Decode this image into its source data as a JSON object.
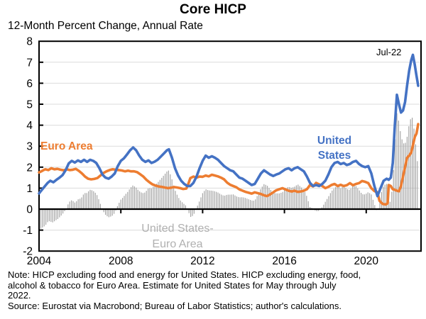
{
  "header": {
    "title": "Core HICP",
    "subtitle": "12-Month Percent Change, Annual Rate"
  },
  "annotations": {
    "euro_area": "Euro Area",
    "united_states_line1": "United",
    "united_states_line2": "States",
    "diff_line1": "United States-",
    "diff_line2": "Euro Area",
    "end_label": "Jul-22"
  },
  "notes": {
    "line1": "Note: HICP excluding food and energy for United States. HICP excluding energy, food,",
    "line2": "alcohol & tobacco for Euro Area. Estimate for United States for May through July",
    "line3": "2022.",
    "line4": "Source: Eurostat via Macrobond; Bureau of Labor Statistics; author's calculations."
  },
  "colors": {
    "united_states": "#4472C4",
    "euro_area": "#ED7D31",
    "difference_bars": "#A6A6A6",
    "diff_label_gray": "#B0B0B0",
    "gridline": "#DBDBDB"
  },
  "chart_data": {
    "type": "line",
    "title": "Core HICP",
    "subtitle": "12-Month Percent Change, Annual Rate",
    "y_axis": {
      "ticks": [
        8,
        7,
        6,
        5,
        4,
        3,
        2,
        1,
        0,
        -1,
        -2
      ],
      "range": [
        -2,
        8
      ],
      "grid": true
    },
    "x_axis": {
      "ticks": [
        2004,
        2008,
        2012,
        2016,
        2020
      ],
      "range": [
        2004,
        2022.67
      ],
      "data_end": 2022.54,
      "end_label": "Jul-22"
    },
    "bar_series": {
      "name": "United States-Euro Area",
      "definition": "united_states_minus_euro_area_monthly",
      "color": "#A6A6A6"
    },
    "series": [
      {
        "name": "United States",
        "color": "#4472C4",
        "points": [
          [
            2004.0,
            0.75
          ],
          [
            2004.08,
            0.85
          ],
          [
            2004.25,
            1.05
          ],
          [
            2004.42,
            1.25
          ],
          [
            2004.55,
            1.35
          ],
          [
            2004.7,
            1.28
          ],
          [
            2004.85,
            1.4
          ],
          [
            2005.0,
            1.5
          ],
          [
            2005.15,
            1.62
          ],
          [
            2005.3,
            1.85
          ],
          [
            2005.45,
            2.18
          ],
          [
            2005.6,
            2.3
          ],
          [
            2005.75,
            2.22
          ],
          [
            2005.9,
            2.32
          ],
          [
            2006.05,
            2.25
          ],
          [
            2006.2,
            2.35
          ],
          [
            2006.35,
            2.25
          ],
          [
            2006.5,
            2.35
          ],
          [
            2006.65,
            2.3
          ],
          [
            2006.8,
            2.2
          ],
          [
            2006.95,
            1.95
          ],
          [
            2007.1,
            1.65
          ],
          [
            2007.25,
            1.5
          ],
          [
            2007.4,
            1.45
          ],
          [
            2007.55,
            1.55
          ],
          [
            2007.7,
            1.7
          ],
          [
            2007.85,
            2.05
          ],
          [
            2008.0,
            2.3
          ],
          [
            2008.15,
            2.42
          ],
          [
            2008.3,
            2.6
          ],
          [
            2008.45,
            2.8
          ],
          [
            2008.6,
            2.94
          ],
          [
            2008.75,
            2.8
          ],
          [
            2008.9,
            2.55
          ],
          [
            2009.05,
            2.35
          ],
          [
            2009.2,
            2.25
          ],
          [
            2009.35,
            2.32
          ],
          [
            2009.5,
            2.2
          ],
          [
            2009.65,
            2.26
          ],
          [
            2009.8,
            2.35
          ],
          [
            2009.95,
            2.5
          ],
          [
            2010.1,
            2.65
          ],
          [
            2010.25,
            2.8
          ],
          [
            2010.35,
            2.85
          ],
          [
            2010.5,
            2.45
          ],
          [
            2010.65,
            1.95
          ],
          [
            2010.8,
            1.6
          ],
          [
            2010.95,
            1.35
          ],
          [
            2011.1,
            1.2
          ],
          [
            2011.25,
            1.1
          ],
          [
            2011.4,
            1.1
          ],
          [
            2011.55,
            1.25
          ],
          [
            2011.7,
            1.55
          ],
          [
            2011.85,
            1.95
          ],
          [
            2012.0,
            2.3
          ],
          [
            2012.15,
            2.55
          ],
          [
            2012.3,
            2.45
          ],
          [
            2012.45,
            2.52
          ],
          [
            2012.6,
            2.45
          ],
          [
            2012.75,
            2.35
          ],
          [
            2012.9,
            2.2
          ],
          [
            2013.05,
            2.05
          ],
          [
            2013.2,
            1.95
          ],
          [
            2013.35,
            1.85
          ],
          [
            2013.5,
            1.8
          ],
          [
            2013.65,
            1.65
          ],
          [
            2013.8,
            1.5
          ],
          [
            2013.95,
            1.45
          ],
          [
            2014.1,
            1.35
          ],
          [
            2014.25,
            1.25
          ],
          [
            2014.4,
            1.15
          ],
          [
            2014.55,
            1.2
          ],
          [
            2014.7,
            1.45
          ],
          [
            2014.85,
            1.7
          ],
          [
            2015.0,
            1.85
          ],
          [
            2015.15,
            1.75
          ],
          [
            2015.3,
            1.65
          ],
          [
            2015.45,
            1.58
          ],
          [
            2015.6,
            1.65
          ],
          [
            2015.75,
            1.7
          ],
          [
            2015.9,
            1.8
          ],
          [
            2016.05,
            1.9
          ],
          [
            2016.2,
            1.95
          ],
          [
            2016.35,
            1.85
          ],
          [
            2016.5,
            1.95
          ],
          [
            2016.65,
            2.0
          ],
          [
            2016.8,
            1.9
          ],
          [
            2016.95,
            1.8
          ],
          [
            2017.1,
            1.55
          ],
          [
            2017.25,
            1.25
          ],
          [
            2017.4,
            1.1
          ],
          [
            2017.55,
            1.15
          ],
          [
            2017.7,
            1.1
          ],
          [
            2017.85,
            1.2
          ],
          [
            2018.0,
            1.35
          ],
          [
            2018.15,
            1.65
          ],
          [
            2018.3,
            2.0
          ],
          [
            2018.45,
            2.2
          ],
          [
            2018.6,
            2.25
          ],
          [
            2018.75,
            2.15
          ],
          [
            2018.9,
            2.2
          ],
          [
            2019.05,
            2.1
          ],
          [
            2019.2,
            2.15
          ],
          [
            2019.35,
            2.25
          ],
          [
            2019.5,
            2.3
          ],
          [
            2019.65,
            2.15
          ],
          [
            2019.8,
            2.05
          ],
          [
            2019.95,
            2.0
          ],
          [
            2020.1,
            2.05
          ],
          [
            2020.25,
            1.7
          ],
          [
            2020.4,
            1.1
          ],
          [
            2020.55,
            0.62
          ],
          [
            2020.7,
            1.0
          ],
          [
            2020.85,
            1.35
          ],
          [
            2021.0,
            1.45
          ],
          [
            2021.1,
            1.4
          ],
          [
            2021.2,
            1.5
          ],
          [
            2021.3,
            2.2
          ],
          [
            2021.4,
            4.0
          ],
          [
            2021.5,
            5.45
          ],
          [
            2021.6,
            5.0
          ],
          [
            2021.7,
            4.6
          ],
          [
            2021.8,
            4.7
          ],
          [
            2021.9,
            5.1
          ],
          [
            2022.0,
            5.9
          ],
          [
            2022.1,
            6.6
          ],
          [
            2022.2,
            7.1
          ],
          [
            2022.28,
            7.35
          ],
          [
            2022.37,
            6.9
          ],
          [
            2022.45,
            6.4
          ],
          [
            2022.54,
            5.88
          ]
        ]
      },
      {
        "name": "Euro Area",
        "color": "#ED7D31",
        "points": [
          [
            2004.0,
            1.75
          ],
          [
            2004.15,
            1.82
          ],
          [
            2004.3,
            1.9
          ],
          [
            2004.45,
            1.86
          ],
          [
            2004.6,
            1.95
          ],
          [
            2004.75,
            1.9
          ],
          [
            2004.9,
            1.92
          ],
          [
            2005.05,
            1.88
          ],
          [
            2005.2,
            1.85
          ],
          [
            2005.35,
            1.9
          ],
          [
            2005.5,
            1.86
          ],
          [
            2005.65,
            1.88
          ],
          [
            2005.8,
            1.92
          ],
          [
            2005.95,
            1.82
          ],
          [
            2006.1,
            1.7
          ],
          [
            2006.25,
            1.55
          ],
          [
            2006.4,
            1.45
          ],
          [
            2006.55,
            1.42
          ],
          [
            2006.7,
            1.44
          ],
          [
            2006.85,
            1.48
          ],
          [
            2007.0,
            1.6
          ],
          [
            2007.15,
            1.72
          ],
          [
            2007.3,
            1.8
          ],
          [
            2007.45,
            1.86
          ],
          [
            2007.6,
            1.9
          ],
          [
            2007.75,
            1.88
          ],
          [
            2007.9,
            1.86
          ],
          [
            2008.05,
            1.84
          ],
          [
            2008.2,
            1.8
          ],
          [
            2008.35,
            1.83
          ],
          [
            2008.5,
            1.8
          ],
          [
            2008.65,
            1.8
          ],
          [
            2008.8,
            1.76
          ],
          [
            2008.95,
            1.66
          ],
          [
            2009.1,
            1.55
          ],
          [
            2009.25,
            1.4
          ],
          [
            2009.4,
            1.28
          ],
          [
            2009.55,
            1.18
          ],
          [
            2009.7,
            1.12
          ],
          [
            2009.85,
            1.08
          ],
          [
            2010.0,
            1.06
          ],
          [
            2010.15,
            1.03
          ],
          [
            2010.3,
            1.0
          ],
          [
            2010.45,
            1.02
          ],
          [
            2010.6,
            1.05
          ],
          [
            2010.75,
            1.03
          ],
          [
            2010.9,
            1.0
          ],
          [
            2011.05,
            0.96
          ],
          [
            2011.2,
            0.98
          ],
          [
            2011.3,
            1.2
          ],
          [
            2011.4,
            1.48
          ],
          [
            2011.55,
            1.55
          ],
          [
            2011.7,
            1.5
          ],
          [
            2011.85,
            1.55
          ],
          [
            2012.0,
            1.54
          ],
          [
            2012.15,
            1.6
          ],
          [
            2012.3,
            1.56
          ],
          [
            2012.45,
            1.64
          ],
          [
            2012.6,
            1.6
          ],
          [
            2012.75,
            1.56
          ],
          [
            2012.9,
            1.5
          ],
          [
            2013.05,
            1.42
          ],
          [
            2013.2,
            1.26
          ],
          [
            2013.35,
            1.16
          ],
          [
            2013.5,
            1.1
          ],
          [
            2013.65,
            1.04
          ],
          [
            2013.8,
            0.94
          ],
          [
            2013.95,
            0.88
          ],
          [
            2014.1,
            0.82
          ],
          [
            2014.25,
            0.78
          ],
          [
            2014.4,
            0.74
          ],
          [
            2014.55,
            0.8
          ],
          [
            2014.7,
            0.76
          ],
          [
            2014.85,
            0.72
          ],
          [
            2015.0,
            0.66
          ],
          [
            2015.15,
            0.62
          ],
          [
            2015.3,
            0.7
          ],
          [
            2015.45,
            0.8
          ],
          [
            2015.6,
            0.9
          ],
          [
            2015.75,
            0.95
          ],
          [
            2015.9,
            1.0
          ],
          [
            2016.05,
            0.94
          ],
          [
            2016.2,
            0.88
          ],
          [
            2016.35,
            0.84
          ],
          [
            2016.5,
            0.88
          ],
          [
            2016.65,
            0.82
          ],
          [
            2016.8,
            0.84
          ],
          [
            2016.95,
            0.88
          ],
          [
            2017.1,
            0.95
          ],
          [
            2017.25,
            1.15
          ],
          [
            2017.4,
            1.08
          ],
          [
            2017.55,
            1.25
          ],
          [
            2017.7,
            1.18
          ],
          [
            2017.85,
            1.1
          ],
          [
            2018.0,
            1.0
          ],
          [
            2018.15,
            1.06
          ],
          [
            2018.3,
            1.15
          ],
          [
            2018.45,
            1.2
          ],
          [
            2018.6,
            1.1
          ],
          [
            2018.75,
            1.16
          ],
          [
            2018.9,
            1.1
          ],
          [
            2019.05,
            1.14
          ],
          [
            2019.2,
            1.24
          ],
          [
            2019.35,
            1.14
          ],
          [
            2019.5,
            1.2
          ],
          [
            2019.65,
            1.24
          ],
          [
            2019.8,
            1.34
          ],
          [
            2019.95,
            1.3
          ],
          [
            2020.1,
            1.24
          ],
          [
            2020.25,
            1.0
          ],
          [
            2020.4,
            0.86
          ],
          [
            2020.55,
            0.8
          ],
          [
            2020.65,
            0.4
          ],
          [
            2020.8,
            0.25
          ],
          [
            2020.95,
            0.22
          ],
          [
            2021.05,
            0.28
          ],
          [
            2021.1,
            1.15
          ],
          [
            2021.2,
            1.1
          ],
          [
            2021.3,
            0.95
          ],
          [
            2021.4,
            0.92
          ],
          [
            2021.5,
            0.88
          ],
          [
            2021.6,
            0.85
          ],
          [
            2021.7,
            1.1
          ],
          [
            2021.8,
            1.55
          ],
          [
            2021.9,
            2.0
          ],
          [
            2022.0,
            2.45
          ],
          [
            2022.1,
            2.55
          ],
          [
            2022.2,
            2.7
          ],
          [
            2022.3,
            3.1
          ],
          [
            2022.38,
            3.45
          ],
          [
            2022.46,
            3.6
          ],
          [
            2022.54,
            4.05
          ]
        ]
      }
    ]
  }
}
